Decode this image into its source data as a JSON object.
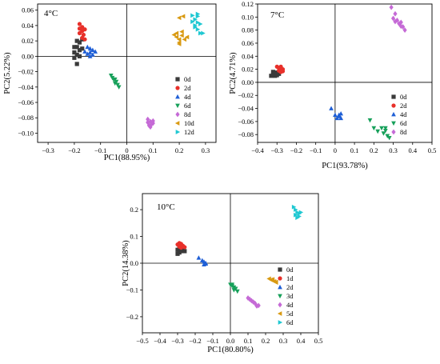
{
  "colors": {
    "0d": "#3a3a3a",
    "1d": "#e8302a",
    "2d_red": "#e8302a",
    "blue": "#1f5fd6",
    "green": "#17a05a",
    "purple": "#c56ad6",
    "orange": "#d99a12",
    "cyan": "#1fc8d2"
  },
  "chart_data": [
    {
      "type": "scatter",
      "title": "4°C",
      "xlabel": "PC1(88.95%)",
      "ylabel": "PC2(5.22%)",
      "xlim": [
        -0.34,
        0.34
      ],
      "ylim": [
        -0.112,
        0.068
      ],
      "xticks": [
        -0.3,
        -0.2,
        -0.1,
        0.0,
        0.1,
        0.2,
        0.3
      ],
      "xtick_labels": [
        "−0.3",
        "−0.2",
        "−0.1",
        "0",
        "0.1",
        "0.2",
        "0.3"
      ],
      "yticks": [
        -0.1,
        -0.08,
        -0.06,
        -0.04,
        -0.02,
        0.0,
        0.02,
        0.04,
        0.06
      ],
      "ytick_labels": [
        "−0.10",
        "−0.08",
        "−0.06",
        "−0.04",
        "−0.02",
        "0.00",
        "0.02",
        "0.04",
        "0.06"
      ],
      "legend_position": "lower-right",
      "series": [
        {
          "name": "0d",
          "color": "#3a3a3a",
          "marker": "square",
          "points": [
            [
              -0.19,
              -0.01
            ],
            [
              -0.2,
              -0.002
            ],
            [
              -0.19,
              0.002
            ],
            [
              -0.2,
              0.005
            ],
            [
              -0.18,
              0.008
            ],
            [
              -0.19,
              0.012
            ],
            [
              -0.17,
              0.01
            ],
            [
              -0.18,
              0.018
            ],
            [
              -0.19,
              0.02
            ],
            [
              -0.17,
              0.022
            ],
            [
              -0.2,
              0.012
            ],
            [
              -0.18,
              0.0
            ]
          ]
        },
        {
          "name": "2d",
          "color": "#e8302a",
          "marker": "circle",
          "points": [
            [
              -0.18,
              0.042
            ],
            [
              -0.17,
              0.038
            ],
            [
              -0.16,
              0.035
            ],
            [
              -0.17,
              0.033
            ],
            [
              -0.18,
              0.03
            ],
            [
              -0.165,
              0.028
            ],
            [
              -0.17,
              0.024
            ],
            [
              -0.16,
              0.022
            ],
            [
              -0.18,
              0.036
            ]
          ]
        },
        {
          "name": "4d",
          "color": "#1f5fd6",
          "marker": "triangle-up",
          "points": [
            [
              -0.15,
              0.012
            ],
            [
              -0.14,
              0.01
            ],
            [
              -0.13,
              0.008
            ],
            [
              -0.14,
              0.005
            ],
            [
              -0.15,
              0.003
            ],
            [
              -0.13,
              0.002
            ],
            [
              -0.14,
              0.0
            ],
            [
              -0.16,
              0.006
            ],
            [
              -0.12,
              0.006
            ]
          ]
        },
        {
          "name": "6d",
          "color": "#17a05a",
          "marker": "triangle-down",
          "points": [
            [
              -0.06,
              -0.025
            ],
            [
              -0.05,
              -0.03
            ],
            [
              -0.045,
              -0.035
            ],
            [
              -0.035,
              -0.037
            ],
            [
              -0.04,
              -0.033
            ],
            [
              -0.03,
              -0.04
            ],
            [
              -0.055,
              -0.028
            ],
            [
              -0.045,
              -0.03
            ]
          ]
        },
        {
          "name": "8d",
          "color": "#c56ad6",
          "marker": "diamond",
          "points": [
            [
              0.08,
              -0.082
            ],
            [
              0.09,
              -0.085
            ],
            [
              0.095,
              -0.088
            ],
            [
              0.085,
              -0.09
            ],
            [
              0.1,
              -0.084
            ],
            [
              0.09,
              -0.092
            ],
            [
              0.1,
              -0.087
            ],
            [
              0.08,
              -0.086
            ]
          ]
        },
        {
          "name": "10d",
          "color": "#d99a12",
          "marker": "triangle-left",
          "points": [
            [
              0.18,
              0.028
            ],
            [
              0.19,
              0.025
            ],
            [
              0.2,
              0.022
            ],
            [
              0.21,
              0.027
            ],
            [
              0.2,
              0.018
            ],
            [
              0.22,
              0.022
            ],
            [
              0.23,
              0.025
            ],
            [
              0.19,
              0.03
            ],
            [
              0.21,
              0.032
            ],
            [
              0.2,
              0.05
            ],
            [
              0.215,
              0.052
            ],
            [
              0.2,
              0.016
            ]
          ]
        },
        {
          "name": "12d",
          "color": "#1fc8d2",
          "marker": "triangle-right",
          "points": [
            [
              0.25,
              0.053
            ],
            [
              0.27,
              0.052
            ],
            [
              0.26,
              0.048
            ],
            [
              0.27,
              0.044
            ],
            [
              0.28,
              0.042
            ],
            [
              0.26,
              0.038
            ],
            [
              0.27,
              0.035
            ],
            [
              0.28,
              0.03
            ],
            [
              0.29,
              0.03
            ],
            [
              0.26,
              0.04
            ],
            [
              0.27,
              0.055
            ],
            [
              0.25,
              0.045
            ]
          ]
        }
      ]
    },
    {
      "type": "scatter",
      "title": "7°C",
      "xlabel": "PC1(93.78%)",
      "ylabel": "PC2(4.71%)",
      "xlim": [
        -0.4,
        0.5
      ],
      "ylim": [
        -0.092,
        0.12
      ],
      "xticks": [
        -0.4,
        -0.3,
        -0.2,
        -0.1,
        0.0,
        0.1,
        0.2,
        0.3,
        0.4,
        0.5
      ],
      "xtick_labels": [
        "−0.4",
        "−0.3",
        "−0.2",
        "−0.1",
        "0",
        "0.1",
        "0.2",
        "0.3",
        "0.4",
        "0.5"
      ],
      "yticks": [
        -0.08,
        -0.06,
        -0.04,
        -0.02,
        0.0,
        0.02,
        0.04,
        0.06,
        0.08,
        0.1,
        0.12
      ],
      "ytick_labels": [
        "−0.08",
        "−0.06",
        "−0.04",
        "−0.02",
        "0.00",
        "0.02",
        "0.04",
        "0.06",
        "0.08",
        "0.10",
        "0.12"
      ],
      "legend_position": "lower-right",
      "series": [
        {
          "name": "0d",
          "color": "#3a3a3a",
          "marker": "square",
          "points": [
            [
              -0.33,
              0.01
            ],
            [
              -0.32,
              0.012
            ],
            [
              -0.31,
              0.014
            ],
            [
              -0.3,
              0.011
            ],
            [
              -0.32,
              0.016
            ],
            [
              -0.31,
              0.01
            ],
            [
              -0.3,
              0.015
            ],
            [
              -0.29,
              0.013
            ]
          ]
        },
        {
          "name": "2d",
          "color": "#e8302a",
          "marker": "circle",
          "points": [
            [
              -0.3,
              0.024
            ],
            [
              -0.29,
              0.022
            ],
            [
              -0.28,
              0.02
            ],
            [
              -0.29,
              0.018
            ],
            [
              -0.28,
              0.016
            ],
            [
              -0.27,
              0.02
            ],
            [
              -0.28,
              0.024
            ],
            [
              -0.27,
              0.017
            ]
          ]
        },
        {
          "name": "4d",
          "color": "#1f5fd6",
          "marker": "triangle-up",
          "points": [
            [
              -0.02,
              -0.04
            ],
            [
              0.0,
              -0.05
            ],
            [
              0.02,
              -0.052
            ],
            [
              0.03,
              -0.048
            ],
            [
              0.01,
              -0.055
            ],
            [
              0.03,
              -0.055
            ],
            [
              0.02,
              -0.05
            ]
          ]
        },
        {
          "name": "6d",
          "color": "#17a05a",
          "marker": "triangle-down",
          "points": [
            [
              0.18,
              -0.058
            ],
            [
              0.2,
              -0.07
            ],
            [
              0.22,
              -0.075
            ],
            [
              0.24,
              -0.07
            ],
            [
              0.25,
              -0.078
            ],
            [
              0.26,
              -0.074
            ],
            [
              0.27,
              -0.082
            ],
            [
              0.28,
              -0.085
            ],
            [
              0.26,
              -0.07
            ]
          ]
        },
        {
          "name": "8d",
          "color": "#c56ad6",
          "marker": "diamond",
          "points": [
            [
              0.29,
              0.115
            ],
            [
              0.31,
              0.105
            ],
            [
              0.3,
              0.098
            ],
            [
              0.32,
              0.095
            ],
            [
              0.33,
              0.09
            ],
            [
              0.34,
              0.092
            ],
            [
              0.35,
              0.085
            ],
            [
              0.36,
              0.08
            ],
            [
              0.34,
              0.086
            ],
            [
              0.31,
              0.093
            ]
          ]
        }
      ]
    },
    {
      "type": "scatter",
      "title": "10°C",
      "xlabel": "PC1(80.80%)",
      "ylabel": "PC2(14.38%)",
      "xlim": [
        -0.5,
        0.5
      ],
      "ylim": [
        -0.26,
        0.26
      ],
      "xticks": [
        -0.5,
        -0.4,
        -0.3,
        -0.2,
        -0.1,
        0.0,
        0.1,
        0.2,
        0.3,
        0.4,
        0.5
      ],
      "xtick_labels": [
        "−0.5",
        "−0.4",
        "−0.3",
        "−0.2",
        "−0.1",
        "0.0",
        "0.1",
        "0.2",
        "0.3",
        "0.4",
        "0.5"
      ],
      "yticks": [
        -0.2,
        -0.1,
        0.0,
        0.1,
        0.2
      ],
      "ytick_labels": [
        "−0.2",
        "−0.1",
        "0.0",
        "0.1",
        "0.2"
      ],
      "legend_position": "lower-right",
      "series": [
        {
          "name": "0d",
          "color": "#3a3a3a",
          "marker": "square",
          "points": [
            [
              -0.3,
              0.035
            ],
            [
              -0.29,
              0.04
            ],
            [
              -0.28,
              0.045
            ],
            [
              -0.3,
              0.05
            ],
            [
              -0.27,
              0.05
            ],
            [
              -0.29,
              0.055
            ],
            [
              -0.26,
              0.045
            ]
          ]
        },
        {
          "name": "1d",
          "color": "#e8302a",
          "marker": "circle",
          "points": [
            [
              -0.3,
              0.07
            ],
            [
              -0.29,
              0.075
            ],
            [
              -0.28,
              0.072
            ],
            [
              -0.27,
              0.065
            ],
            [
              -0.29,
              0.062
            ],
            [
              -0.28,
              0.058
            ],
            [
              -0.26,
              0.06
            ]
          ]
        },
        {
          "name": "2d",
          "color": "#1f5fd6",
          "marker": "triangle-up",
          "points": [
            [
              -0.18,
              0.02
            ],
            [
              -0.16,
              0.01
            ],
            [
              -0.15,
              0.005
            ],
            [
              -0.14,
              0.0
            ],
            [
              -0.15,
              -0.005
            ],
            [
              -0.14,
              -0.002
            ]
          ]
        },
        {
          "name": "3d",
          "color": "#17a05a",
          "marker": "triangle-down",
          "points": [
            [
              0.0,
              -0.08
            ],
            [
              0.01,
              -0.085
            ],
            [
              0.02,
              -0.09
            ],
            [
              0.03,
              -0.095
            ],
            [
              0.02,
              -0.1
            ],
            [
              0.04,
              -0.105
            ],
            [
              0.01,
              -0.08
            ]
          ]
        },
        {
          "name": "4d",
          "color": "#c56ad6",
          "marker": "diamond",
          "points": [
            [
              0.1,
              -0.13
            ],
            [
              0.12,
              -0.14
            ],
            [
              0.13,
              -0.145
            ],
            [
              0.14,
              -0.15
            ],
            [
              0.15,
              -0.16
            ],
            [
              0.16,
              -0.158
            ],
            [
              0.11,
              -0.135
            ]
          ]
        },
        {
          "name": "5d",
          "color": "#d99a12",
          "marker": "triangle-left",
          "points": [
            [
              0.22,
              -0.058
            ],
            [
              0.23,
              -0.062
            ],
            [
              0.24,
              -0.065
            ],
            [
              0.25,
              -0.068
            ],
            [
              0.26,
              -0.072
            ],
            [
              0.24,
              -0.06
            ],
            [
              0.26,
              -0.07
            ]
          ]
        },
        {
          "name": "6d",
          "color": "#1fc8d2",
          "marker": "triangle-right",
          "points": [
            [
              0.36,
              0.21
            ],
            [
              0.37,
              0.2
            ],
            [
              0.38,
              0.19
            ],
            [
              0.39,
              0.185
            ],
            [
              0.37,
              0.18
            ],
            [
              0.4,
              0.19
            ],
            [
              0.38,
              0.17
            ],
            [
              0.39,
              0.175
            ]
          ]
        }
      ]
    }
  ]
}
